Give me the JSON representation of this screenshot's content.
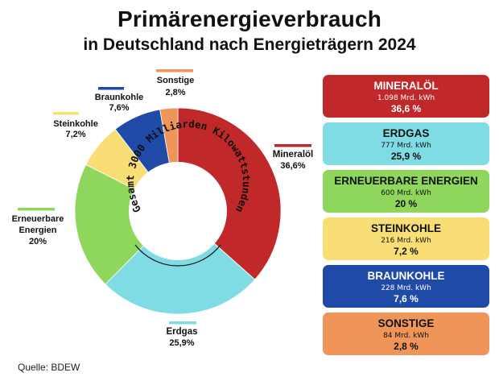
{
  "title": "Primärenergieverbrauch",
  "subtitle": "in Deutschland nach Energieträgern 2024",
  "source": "Quelle: BDEW",
  "center_text": "Gesamt 3000 Milliarden Kilowattstunden",
  "chart_data": {
    "type": "pie",
    "title": "Primärenergieverbrauch in Deutschland nach Energieträgern 2024",
    "center_label": "Gesamt 3000 Milliarden Kilowattstunden",
    "slices": [
      {
        "label": "Mineralöl",
        "card_label": "MINERALÖL",
        "value": 36.6,
        "pct_label": "36,6%",
        "card_pct": "36,6 %",
        "amount": "1.098 Mrd. kWh",
        "color": "#c0282a",
        "text_color": "#ffffff"
      },
      {
        "label": "Erdgas",
        "card_label": "ERDGAS",
        "value": 25.9,
        "pct_label": "25,9%",
        "card_pct": "25,9 %",
        "amount": "777 Mrd. kWh",
        "color": "#7fdbe4",
        "text_color": "#111111"
      },
      {
        "label": "Erneuerbare Energien",
        "card_label": "ERNEUERBARE ENERGIEN",
        "value": 20,
        "pct_label": "20%",
        "card_pct": "20 %",
        "amount": "600 Mrd. kWh",
        "color": "#8fd65c",
        "text_color": "#111111"
      },
      {
        "label": "Steinkohle",
        "card_label": "STEINKOHLE",
        "value": 7.2,
        "pct_label": "7,2%",
        "card_pct": "7,2 %",
        "amount": "216 Mrd. kWh",
        "color": "#f8de74",
        "text_color": "#111111"
      },
      {
        "label": "Braunkohle",
        "card_label": "BRAUNKOHLE",
        "value": 7.6,
        "pct_label": "7,6%",
        "card_pct": "7,6 %",
        "amount": "228 Mrd. kWh",
        "color": "#1f4aa8",
        "text_color": "#ffffff"
      },
      {
        "label": "Sonstige",
        "card_label": "SONSTIGE",
        "value": 2.8,
        "pct_label": "2,8%",
        "card_pct": "2,8 %",
        "amount": "84 Mrd. kWh",
        "color": "#ef955a",
        "text_color": "#111111"
      }
    ]
  }
}
